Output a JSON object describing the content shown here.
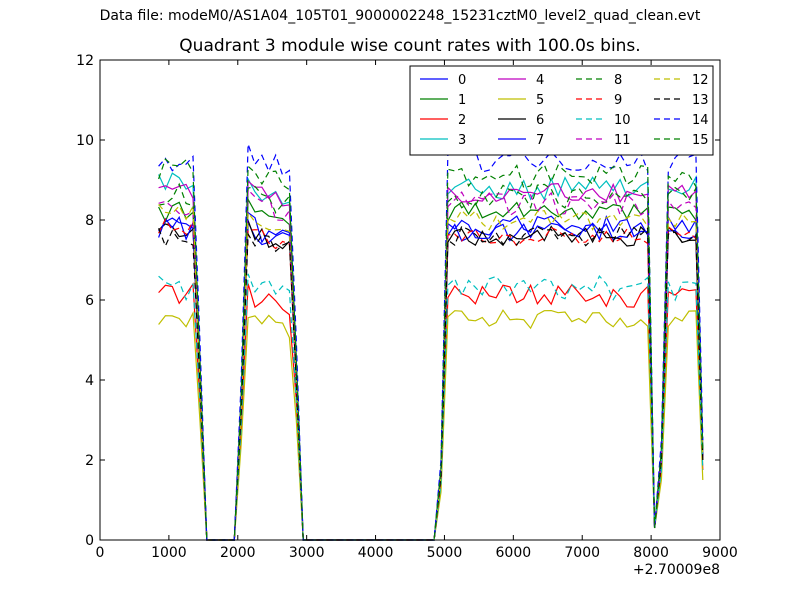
{
  "header": {
    "suptitle": "Data file: modeM0/AS1A04_105T01_9000002248_15231cztM0_level2_quad_clean.evt",
    "title": "Quadrant 3 module wise count rates with 100.0s bins.",
    "x_offset_label": "+2.70009e8"
  },
  "chart_data": {
    "type": "line",
    "title": "Quadrant 3 module wise count rates with 100.0s bins.",
    "xlabel": "",
    "ylabel": "",
    "xlim": [
      0,
      9000
    ],
    "ylim": [
      0,
      12
    ],
    "x_ticks": [
      0,
      1000,
      2000,
      3000,
      4000,
      5000,
      6000,
      7000,
      8000,
      9000
    ],
    "y_ticks": [
      0,
      2,
      4,
      6,
      8,
      10,
      12
    ],
    "x_offset": "+2.70009e8",
    "grid": false,
    "legend": {
      "placement": "top-right",
      "columns": 4
    },
    "x": [
      850,
      950,
      1050,
      1150,
      1250,
      1350,
      1450,
      1550,
      1650,
      1750,
      1850,
      1950,
      2050,
      2150,
      2250,
      2350,
      2450,
      2550,
      2650,
      2750,
      2850,
      2950,
      3050,
      3150,
      3250,
      3350,
      3450,
      3550,
      3650,
      3750,
      3850,
      3950,
      4050,
      4150,
      4250,
      4350,
      4450,
      4550,
      4650,
      4750,
      4850,
      4950,
      5050,
      5150,
      5250,
      5350,
      5450,
      5550,
      5650,
      5750,
      5850,
      5950,
      6050,
      6150,
      6250,
      6350,
      6450,
      6550,
      6650,
      6750,
      6850,
      6950,
      7050,
      7150,
      7250,
      7350,
      7450,
      7550,
      7650,
      7750,
      7850,
      7950,
      8050,
      8150,
      8250,
      8350,
      8450,
      8550,
      8650,
      8750
    ],
    "series": [
      {
        "name": "0",
        "color": "#0000ff",
        "dash": "solid",
        "level": 7.7,
        "drop": 4.0,
        "amp": 0.25
      },
      {
        "name": "1",
        "color": "#008000",
        "dash": "solid",
        "level": 8.2,
        "drop": 4.0,
        "amp": 0.25
      },
      {
        "name": "2",
        "color": "#ff0000",
        "dash": "solid",
        "level": 6.1,
        "drop": 3.5,
        "amp": 0.3
      },
      {
        "name": "3",
        "color": "#00bfbf",
        "dash": "solid",
        "level": 8.8,
        "drop": 4.5,
        "amp": 0.3
      },
      {
        "name": "4",
        "color": "#bf00bf",
        "dash": "solid",
        "level": 8.7,
        "drop": 4.5,
        "amp": 0.25
      },
      {
        "name": "5",
        "color": "#bfbf00",
        "dash": "solid",
        "level": 5.5,
        "drop": 3.0,
        "amp": 0.25
      },
      {
        "name": "6",
        "color": "#000000",
        "dash": "solid",
        "level": 7.6,
        "drop": 4.0,
        "amp": 0.25
      },
      {
        "name": "7",
        "color": "#0000ff",
        "dash": "solid",
        "level": 7.8,
        "drop": 4.0,
        "amp": 0.3
      },
      {
        "name": "8",
        "color": "#008000",
        "dash": "dashed",
        "level": 8.6,
        "drop": 4.5,
        "amp": 0.3
      },
      {
        "name": "9",
        "color": "#ff0000",
        "dash": "dashed",
        "level": 7.6,
        "drop": 4.0,
        "amp": 0.25
      },
      {
        "name": "10",
        "color": "#00bfbf",
        "dash": "dashed",
        "level": 6.3,
        "drop": 3.5,
        "amp": 0.3
      },
      {
        "name": "11",
        "color": "#bf00bf",
        "dash": "dashed",
        "level": 8.4,
        "drop": 4.0,
        "amp": 0.3
      },
      {
        "name": "12",
        "color": "#bfbf00",
        "dash": "dashed",
        "level": 8.0,
        "drop": 4.0,
        "amp": 0.25
      },
      {
        "name": "13",
        "color": "#000000",
        "dash": "dashed",
        "level": 7.6,
        "drop": 4.0,
        "amp": 0.25
      },
      {
        "name": "14",
        "color": "#0000ff",
        "dash": "dashed",
        "level": 9.5,
        "drop": 5.0,
        "amp": 0.3
      },
      {
        "name": "15",
        "color": "#008000",
        "dash": "dashed",
        "level": 9.1,
        "drop": 4.5,
        "amp": 0.3
      }
    ]
  }
}
